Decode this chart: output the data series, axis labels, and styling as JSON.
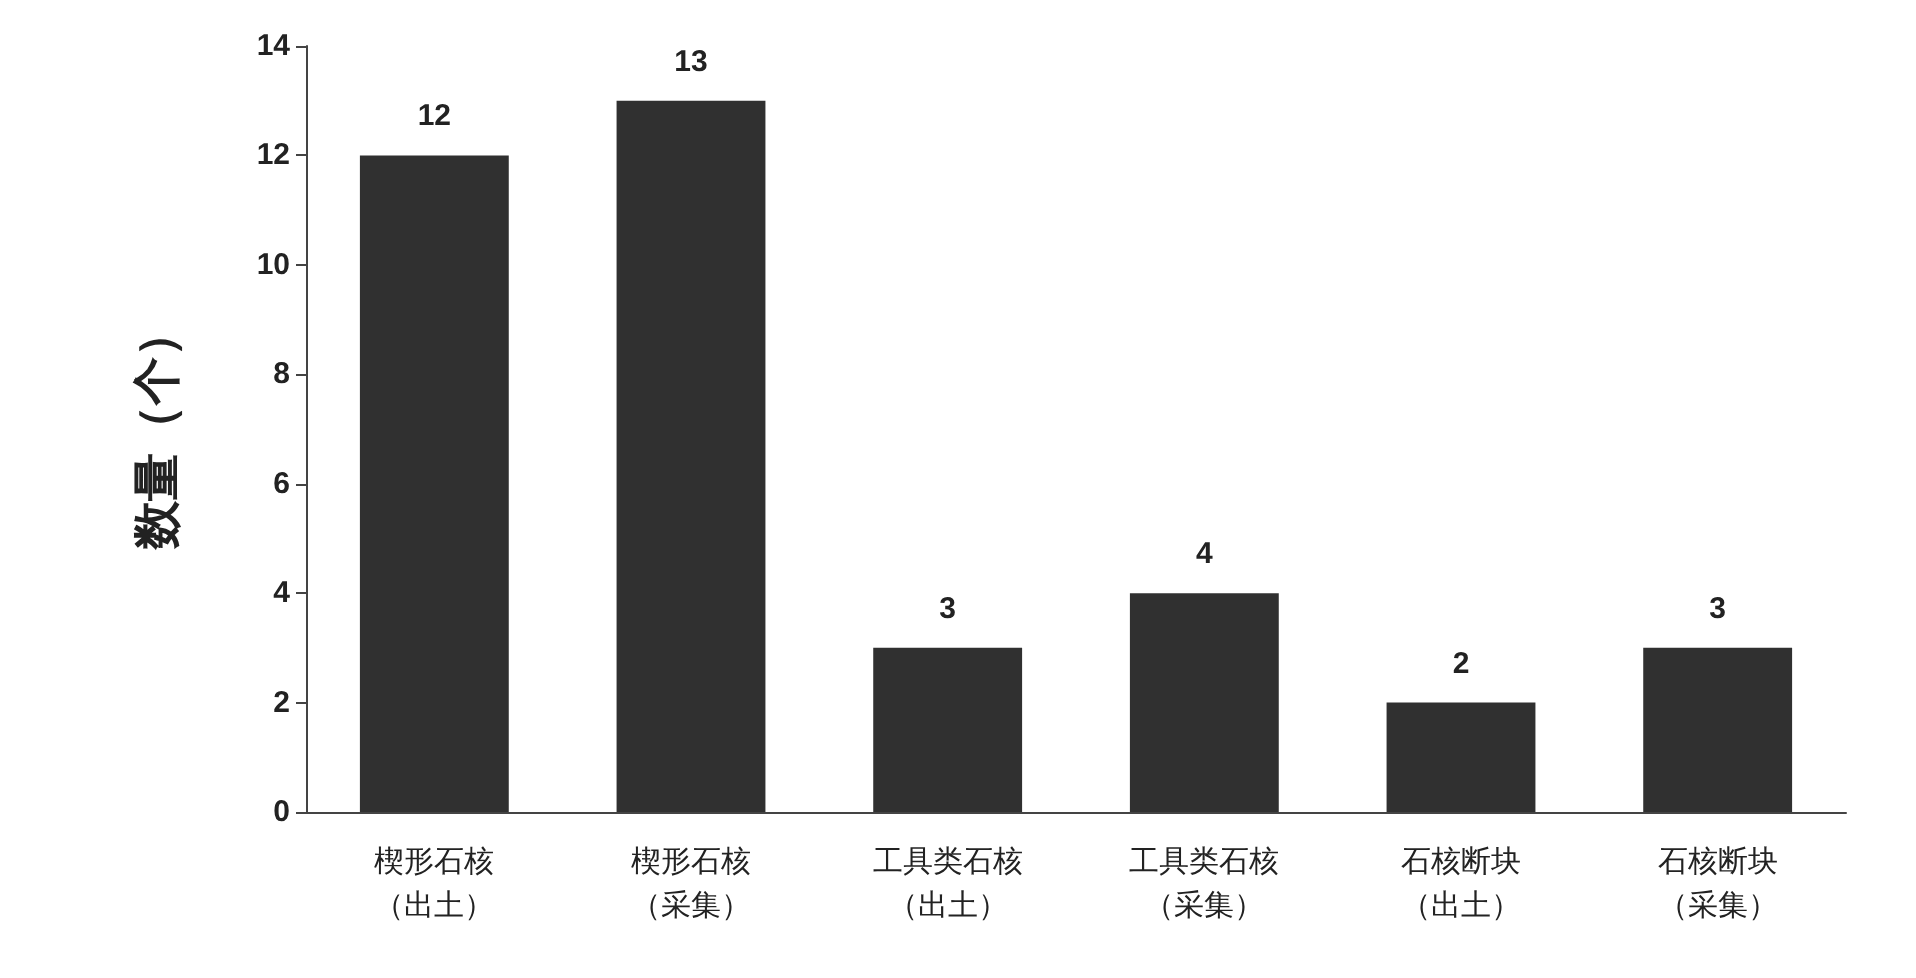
{
  "chart_data": {
    "type": "bar",
    "ylabel": "数量（个）",
    "categories": [
      "楔形石核（出土）",
      "楔形石核（采集）",
      "工具类石核（出土）",
      "工具类石核（采集）",
      "石核断块（出土）",
      "石核断块（采集）"
    ],
    "values": [
      12,
      13,
      3,
      4,
      2,
      3
    ],
    "color": "#303030",
    "ylim": [
      0,
      14
    ],
    "yticks": [
      0,
      2,
      4,
      6,
      8,
      10,
      12,
      14
    ],
    "grid": false,
    "data_labels": true
  }
}
